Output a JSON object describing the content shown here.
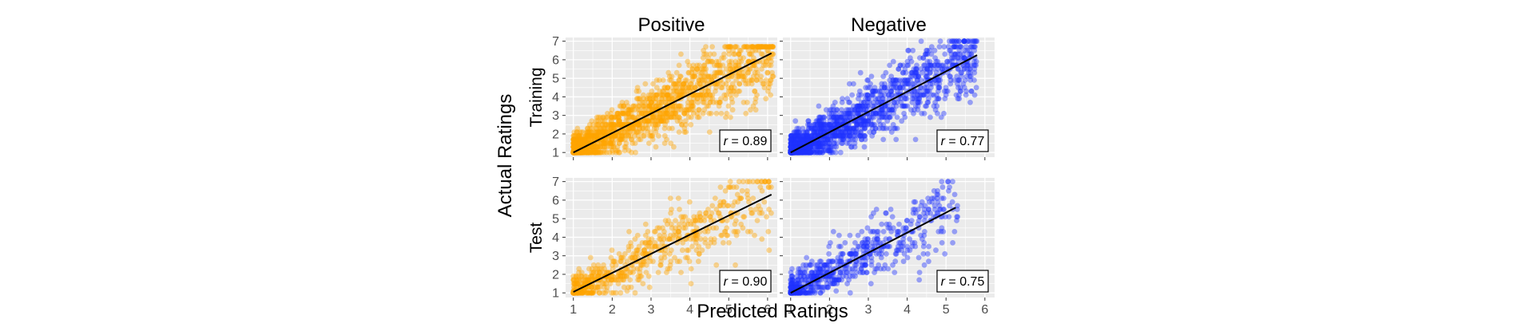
{
  "figure": {
    "xlabel": "Predicted Ratings",
    "ylabel": "Actual Ratings"
  },
  "colors": {
    "positive": "#FFA500",
    "negative": "#1F33FF",
    "panel_bg": "#EBEBEB",
    "grid": "#FFFFFF",
    "fit_line": "#000000"
  },
  "chart_data": [
    {
      "type": "scatter",
      "column": "Positive",
      "row": "Training",
      "color": "#FFA500",
      "xlim": [
        0.8,
        6.25
      ],
      "ylim": [
        0.75,
        7.2
      ],
      "x_ticks": [
        "1",
        "2",
        "3",
        "4",
        "5",
        "6"
      ],
      "y_ticks": [
        "1",
        "2",
        "3",
        "4",
        "5",
        "6",
        "7"
      ],
      "show_x_tick_labels": false,
      "correlation": "0.89",
      "fit_line": {
        "x": [
          1.0,
          6.1
        ],
        "y": [
          1.0,
          6.35
        ]
      },
      "point_cloud": {
        "x_range": [
          1.0,
          6.15
        ],
        "y_range": [
          1.0,
          6.7
        ],
        "approx_count": 1600,
        "slope": 1.05
      }
    },
    {
      "type": "scatter",
      "column": "Negative",
      "row": "Training",
      "color": "#1F33FF",
      "xlim": [
        0.8,
        6.25
      ],
      "ylim": [
        0.75,
        7.2
      ],
      "x_ticks": [
        "1",
        "2",
        "3",
        "4",
        "5",
        "6"
      ],
      "y_ticks": [
        "1",
        "2",
        "3",
        "4",
        "5",
        "6",
        "7"
      ],
      "show_x_tick_labels": false,
      "correlation": "0.77",
      "fit_line": {
        "x": [
          1.0,
          5.8
        ],
        "y": [
          1.0,
          6.25
        ]
      },
      "point_cloud": {
        "x_range": [
          1.0,
          5.8
        ],
        "y_range": [
          1.0,
          7.0
        ],
        "approx_count": 1600,
        "slope": 1.09
      }
    },
    {
      "type": "scatter",
      "column": "Positive",
      "row": "Test",
      "color": "#FFA500",
      "xlim": [
        0.8,
        6.25
      ],
      "ylim": [
        0.75,
        7.2
      ],
      "x_ticks": [
        "1",
        "2",
        "3",
        "4",
        "5",
        "6"
      ],
      "y_ticks": [
        "1",
        "2",
        "3",
        "4",
        "5",
        "6",
        "7"
      ],
      "show_x_tick_labels": true,
      "correlation": "0.90",
      "fit_line": {
        "x": [
          1.0,
          6.1
        ],
        "y": [
          1.05,
          6.3
        ]
      },
      "point_cloud": {
        "x_range": [
          1.0,
          6.1
        ],
        "y_range": [
          1.0,
          7.0
        ],
        "approx_count": 650,
        "slope": 1.03
      }
    },
    {
      "type": "scatter",
      "column": "Negative",
      "row": "Test",
      "color": "#1F33FF",
      "xlim": [
        0.8,
        6.25
      ],
      "ylim": [
        0.75,
        7.2
      ],
      "x_ticks": [
        "1",
        "2",
        "3",
        "4",
        "5",
        "6"
      ],
      "y_ticks": [
        "1",
        "2",
        "3",
        "4",
        "5",
        "6",
        "7"
      ],
      "show_x_tick_labels": true,
      "correlation": "0.75",
      "fit_line": {
        "x": [
          1.0,
          5.25
        ],
        "y": [
          1.0,
          5.6
        ]
      },
      "point_cloud": {
        "x_range": [
          1.0,
          5.3
        ],
        "y_range": [
          1.0,
          7.0
        ],
        "approx_count": 650,
        "slope": 1.08
      }
    }
  ]
}
